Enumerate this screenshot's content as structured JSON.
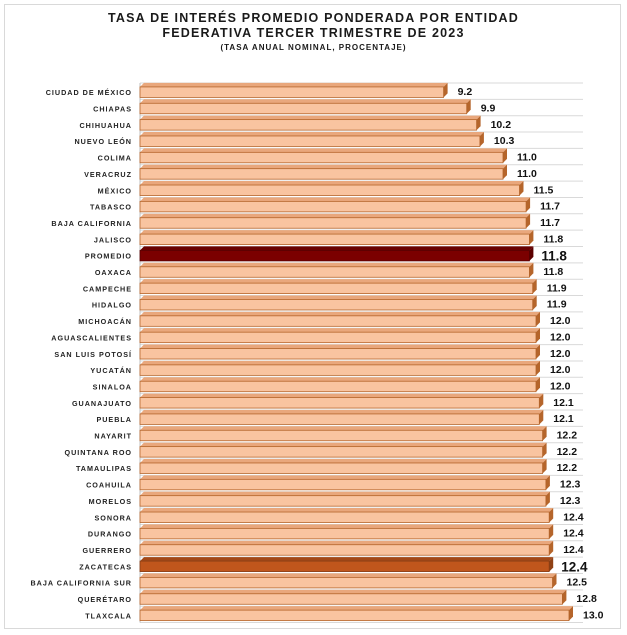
{
  "chart_data": {
    "type": "bar",
    "orientation": "horizontal",
    "title": "TASA DE INTERÉS PROMEDIO PONDERADA POR ENTIDAD",
    "title_line2": "FEDERATIVA TERCER TRIMESTRE DE 2023",
    "subtitle": "(TASA ANUAL NOMINAL, PROCENTAJE)",
    "xlabel": "",
    "ylabel": "",
    "grid": "horizontal lines",
    "categories": [
      "CIUDAD DE MÉXICO",
      "CHIAPAS",
      "CHIHUAHUA",
      "NUEVO LEÓN",
      "COLIMA",
      "VERACRUZ",
      "MÉXICO",
      "TABASCO",
      "BAJA CALIFORNIA",
      "JALISCO",
      "PROMEDIO",
      "OAXACA",
      "CAMPECHE",
      "HIDALGO",
      "MICHOACÁN",
      "AGUASCALIENTES",
      "SAN LUIS POTOSÍ",
      "YUCATÁN",
      "SINALOA",
      "GUANAJUATO",
      "PUEBLA",
      "NAYARIT",
      "QUINTANA ROO",
      "TAMAULIPAS",
      "COAHUILA",
      "MORELOS",
      "SONORA",
      "DURANGO",
      "GUERRERO",
      "ZACATECAS",
      "BAJA CALIFORNIA SUR",
      "QUERÉTARO",
      "TLAXCALA"
    ],
    "values": [
      9.2,
      9.9,
      10.2,
      10.3,
      11.0,
      11.0,
      11.5,
      11.7,
      11.7,
      11.8,
      11.8,
      11.8,
      11.9,
      11.9,
      12.0,
      12.0,
      12.0,
      12.0,
      12.0,
      12.1,
      12.1,
      12.2,
      12.2,
      12.2,
      12.3,
      12.3,
      12.4,
      12.4,
      12.4,
      12.4,
      12.5,
      12.8,
      13.0
    ],
    "highlighted": {
      "PROMEDIO": "#7b0000",
      "ZACATECAS": "#c0561c"
    },
    "bar_color": "#f9c4a0",
    "bar_edge": "#b5652b",
    "xlim": [
      0,
      13.8
    ]
  }
}
